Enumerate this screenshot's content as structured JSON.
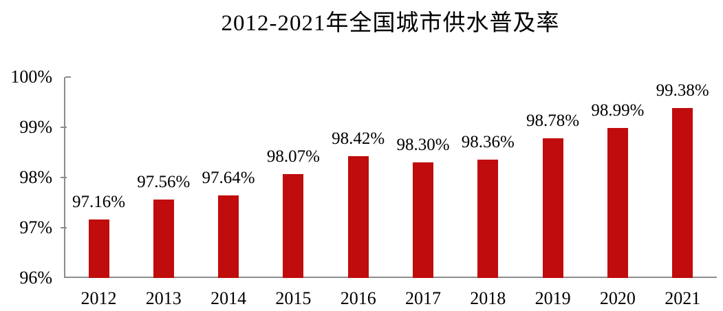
{
  "chart_data": {
    "type": "bar",
    "title": "2012-2021年全国城市供水普及率",
    "categories": [
      "2012",
      "2013",
      "2014",
      "2015",
      "2016",
      "2017",
      "2018",
      "2019",
      "2020",
      "2021"
    ],
    "values": [
      97.16,
      97.56,
      97.64,
      98.07,
      98.42,
      98.3,
      98.36,
      98.78,
      98.99,
      99.38
    ],
    "value_labels": [
      "97.16%",
      "97.56%",
      "97.64%",
      "98.07%",
      "98.42%",
      "98.30%",
      "98.36%",
      "98.78%",
      "98.99%",
      "99.38%"
    ],
    "xlabel": "",
    "ylabel": "",
    "ylim": [
      96,
      100
    ],
    "yticks": [
      {
        "value": 96,
        "label": "96%"
      },
      {
        "value": 97,
        "label": "97%"
      },
      {
        "value": 98,
        "label": "98%"
      },
      {
        "value": 99,
        "label": "99%"
      },
      {
        "value": 100,
        "label": "100%"
      }
    ],
    "grid": false,
    "legend_position": "none",
    "bar_color": "#c00c0c",
    "axis_color": "#8c8c8c",
    "text_color": "#000000",
    "background_color": "#ffffff"
  }
}
